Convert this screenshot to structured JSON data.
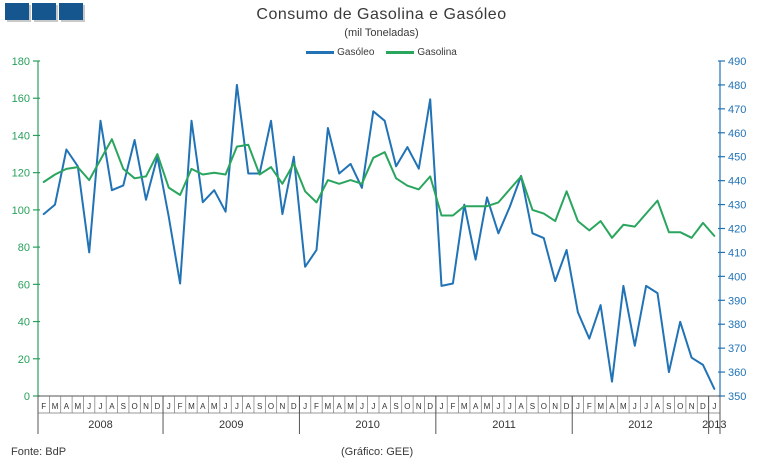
{
  "header": {
    "title": "Consumo de Gasolina e Gasóleo",
    "subtitle": "(mil Toneladas)"
  },
  "legend": {
    "items": [
      {
        "label": "Gasóleo",
        "color": "#2173b6"
      },
      {
        "label": "Gasolina",
        "color": "#2aa55e"
      }
    ]
  },
  "footer": {
    "source": "Fonte: BdP",
    "credit": "(Gráfico: GEE)"
  },
  "decor": {
    "squares_color": "#15568f",
    "squares_count": 3
  },
  "chart_data": {
    "type": "line",
    "title": "Consumo de Gasolina e Gasóleo",
    "subtitle": "(mil Toneladas)",
    "grid": false,
    "legend_position": "top-center",
    "x_months": [
      "F",
      "M",
      "A",
      "M",
      "J",
      "J",
      "A",
      "S",
      "O",
      "N",
      "D",
      "J",
      "F",
      "M",
      "A",
      "M",
      "J",
      "J",
      "A",
      "S",
      "O",
      "N",
      "D",
      "J",
      "F",
      "M",
      "A",
      "M",
      "J",
      "J",
      "A",
      "S",
      "O",
      "N",
      "D",
      "J",
      "F",
      "M",
      "A",
      "M",
      "J",
      "J",
      "A",
      "S",
      "O",
      "N",
      "D",
      "J",
      "F",
      "M",
      "A",
      "M",
      "J",
      "J",
      "A",
      "S",
      "O",
      "N",
      "D",
      "J"
    ],
    "year_groups": [
      {
        "year": "2008",
        "months": 11
      },
      {
        "year": "2009",
        "months": 12
      },
      {
        "year": "2010",
        "months": 12
      },
      {
        "year": "2011",
        "months": 12
      },
      {
        "year": "2012",
        "months": 12
      },
      {
        "year": "2013",
        "months": 1
      }
    ],
    "left_axis": {
      "series": "Gasolina",
      "min": 0,
      "max": 180,
      "step": 20,
      "color": "#28a05c",
      "ticks": [
        0,
        20,
        40,
        60,
        80,
        100,
        120,
        140,
        160,
        180
      ]
    },
    "right_axis": {
      "series": "Gasóleo",
      "min": 350,
      "max": 490,
      "step": 10,
      "color": "#2173b6",
      "ticks": [
        350,
        360,
        370,
        380,
        390,
        400,
        410,
        420,
        430,
        440,
        450,
        460,
        470,
        480,
        490
      ]
    },
    "series": [
      {
        "name": "Gasóleo",
        "axis": "right",
        "color": "#2173b6",
        "values": [
          426,
          430,
          453,
          446,
          410,
          465,
          436,
          438,
          457,
          432,
          450,
          425,
          397,
          465,
          431,
          436,
          427,
          480,
          443,
          443,
          465,
          426,
          450,
          404,
          411,
          462,
          443,
          447,
          437,
          469,
          465,
          446,
          454,
          445,
          474,
          396,
          397,
          430,
          407,
          433,
          418,
          429,
          442,
          418,
          416,
          398,
          411,
          385,
          374,
          388,
          356,
          396,
          371,
          396,
          393,
          360,
          381,
          366,
          363,
          353
        ]
      },
      {
        "name": "Gasolina",
        "axis": "left",
        "color": "#2aa55e",
        "values": [
          115,
          119,
          122,
          123,
          116,
          127,
          138,
          122,
          117,
          118,
          130,
          112,
          108,
          122,
          119,
          120,
          119,
          134,
          135,
          119,
          123,
          114,
          125,
          110,
          104,
          116,
          114,
          116,
          114,
          128,
          131,
          117,
          113,
          111,
          118,
          97,
          97,
          102,
          102,
          102,
          104,
          111,
          118,
          100,
          98,
          94,
          110,
          94,
          89,
          94,
          85,
          92,
          91,
          98,
          105,
          88,
          88,
          85,
          93,
          86
        ]
      }
    ]
  }
}
